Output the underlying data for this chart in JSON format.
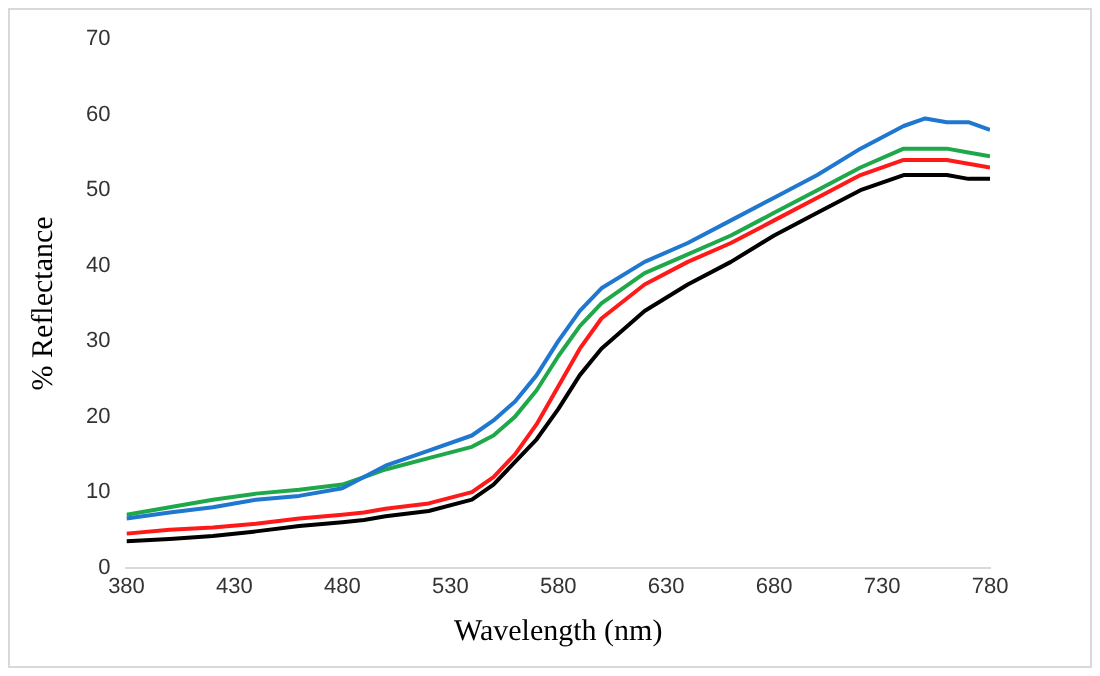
{
  "chart_data": {
    "type": "line",
    "xlabel": "Wavelength (nm)",
    "ylabel": "% Reflectance",
    "x": [
      380,
      400,
      420,
      440,
      460,
      480,
      490,
      500,
      520,
      540,
      550,
      560,
      570,
      580,
      590,
      600,
      620,
      640,
      660,
      680,
      700,
      720,
      740,
      750,
      760,
      770,
      780
    ],
    "series": [
      {
        "color": "#1f77d0",
        "values": [
          6.5,
          7.3,
          8,
          9,
          9.5,
          10.5,
          12,
          13.5,
          15.5,
          17.5,
          19.5,
          22,
          25.5,
          30,
          34,
          37,
          40.5,
          43,
          46,
          49,
          52,
          55.5,
          58.5,
          59.5,
          59,
          59,
          58
        ]
      },
      {
        "color": "#1fa84a",
        "values": [
          7,
          8,
          9,
          9.8,
          10.3,
          11,
          12,
          13,
          14.5,
          16,
          17.5,
          20,
          23.5,
          28,
          32,
          35,
          39,
          41.5,
          44,
          47,
          50,
          53,
          55.5,
          55.5,
          55.5,
          55,
          54.5
        ]
      },
      {
        "color": "#ff1a1a",
        "values": [
          4.5,
          5,
          5.3,
          5.8,
          6.5,
          7,
          7.3,
          7.8,
          8.5,
          10,
          12,
          15,
          19,
          24,
          29,
          33,
          37.5,
          40.5,
          43,
          46,
          49,
          52,
          54,
          54,
          54,
          53.5,
          53
        ]
      },
      {
        "color": "#000000",
        "values": [
          3.5,
          3.8,
          4.2,
          4.8,
          5.5,
          6,
          6.3,
          6.8,
          7.5,
          9,
          11,
          14,
          17,
          21,
          25.5,
          29,
          34,
          37.5,
          40.5,
          44,
          47,
          50,
          52,
          52,
          52,
          51.5,
          51.5
        ]
      }
    ],
    "xlim": [
      380,
      780
    ],
    "xticks": [
      380,
      430,
      480,
      530,
      580,
      630,
      680,
      730,
      780
    ],
    "ylim": [
      0,
      70
    ],
    "yticks": [
      0,
      10,
      20,
      30,
      40,
      50,
      60,
      70
    ],
    "grid": false,
    "legend": false
  }
}
